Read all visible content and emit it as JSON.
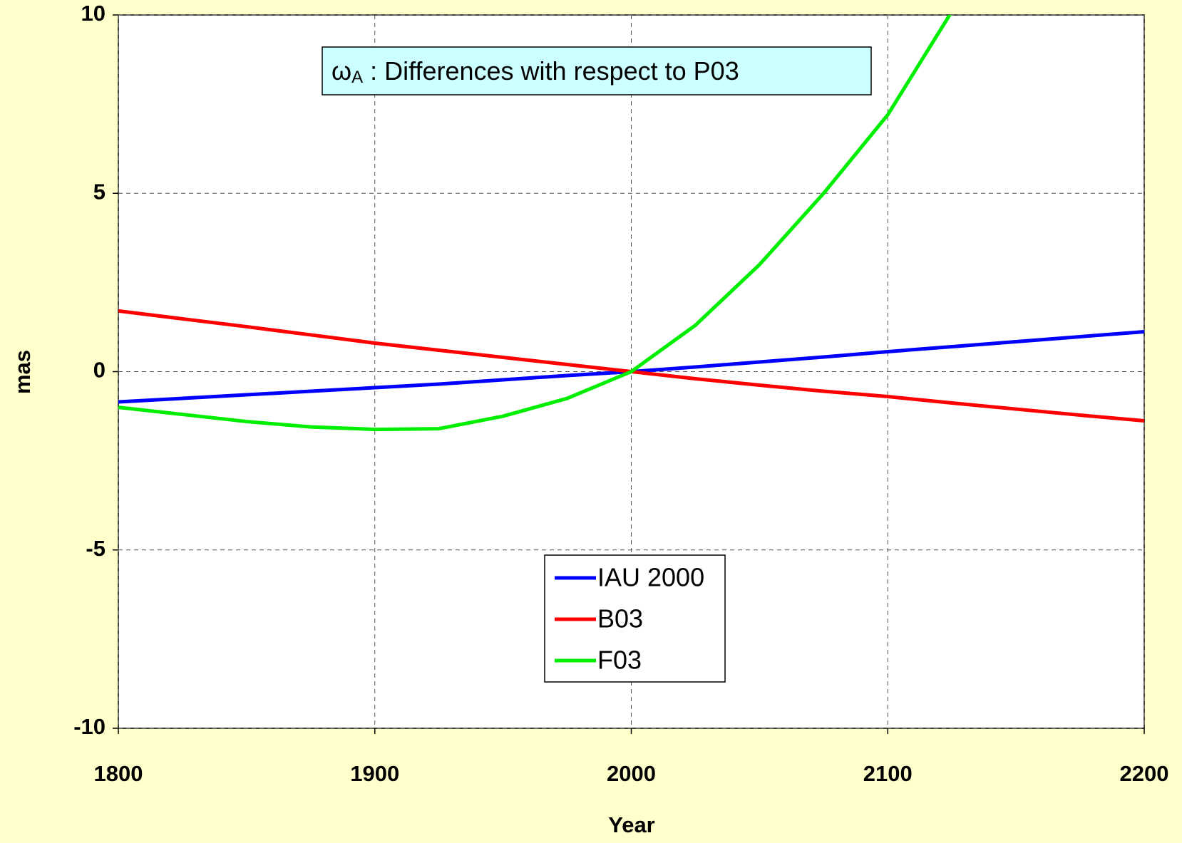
{
  "chart_data": {
    "type": "line",
    "title_symbol": "ω",
    "title_subscript": "A",
    "title": ": Differences with respect to P03",
    "xlabel": "Year",
    "ylabel": "mas",
    "x": [
      1800,
      1825,
      1850,
      1875,
      1900,
      1925,
      1950,
      1975,
      2000,
      2025,
      2050,
      2075,
      2100,
      2125,
      2150,
      2175,
      2200
    ],
    "series": [
      {
        "name": "IAU 2000",
        "color": "#0000ff",
        "values": [
          -0.85,
          -0.75,
          -0.65,
          -0.55,
          -0.45,
          -0.35,
          -0.23,
          -0.11,
          0,
          0.13,
          0.27,
          0.41,
          0.56,
          0.7,
          0.84,
          0.98,
          1.12
        ]
      },
      {
        "name": "B03",
        "color": "#ff0000",
        "values": [
          1.7,
          1.48,
          1.26,
          1.03,
          0.8,
          0.6,
          0.4,
          0.2,
          0,
          -0.2,
          -0.38,
          -0.55,
          -0.7,
          -0.88,
          -1.05,
          -1.22,
          -1.38
        ]
      },
      {
        "name": "F03",
        "color": "#00ee00",
        "values": [
          -1.0,
          -1.2,
          -1.4,
          -1.55,
          -1.62,
          -1.6,
          -1.25,
          -0.75,
          0,
          1.3,
          3.0,
          5.0,
          7.2,
          10.1,
          null,
          null,
          null
        ]
      }
    ],
    "xlim": [
      1800,
      2200
    ],
    "xticks": [
      1800,
      1900,
      2000,
      2100,
      2200
    ],
    "ylim": [
      -10,
      10
    ],
    "yticks": [
      -10,
      -5,
      0,
      5,
      10
    ],
    "grid": true,
    "legend": "bottom center"
  }
}
